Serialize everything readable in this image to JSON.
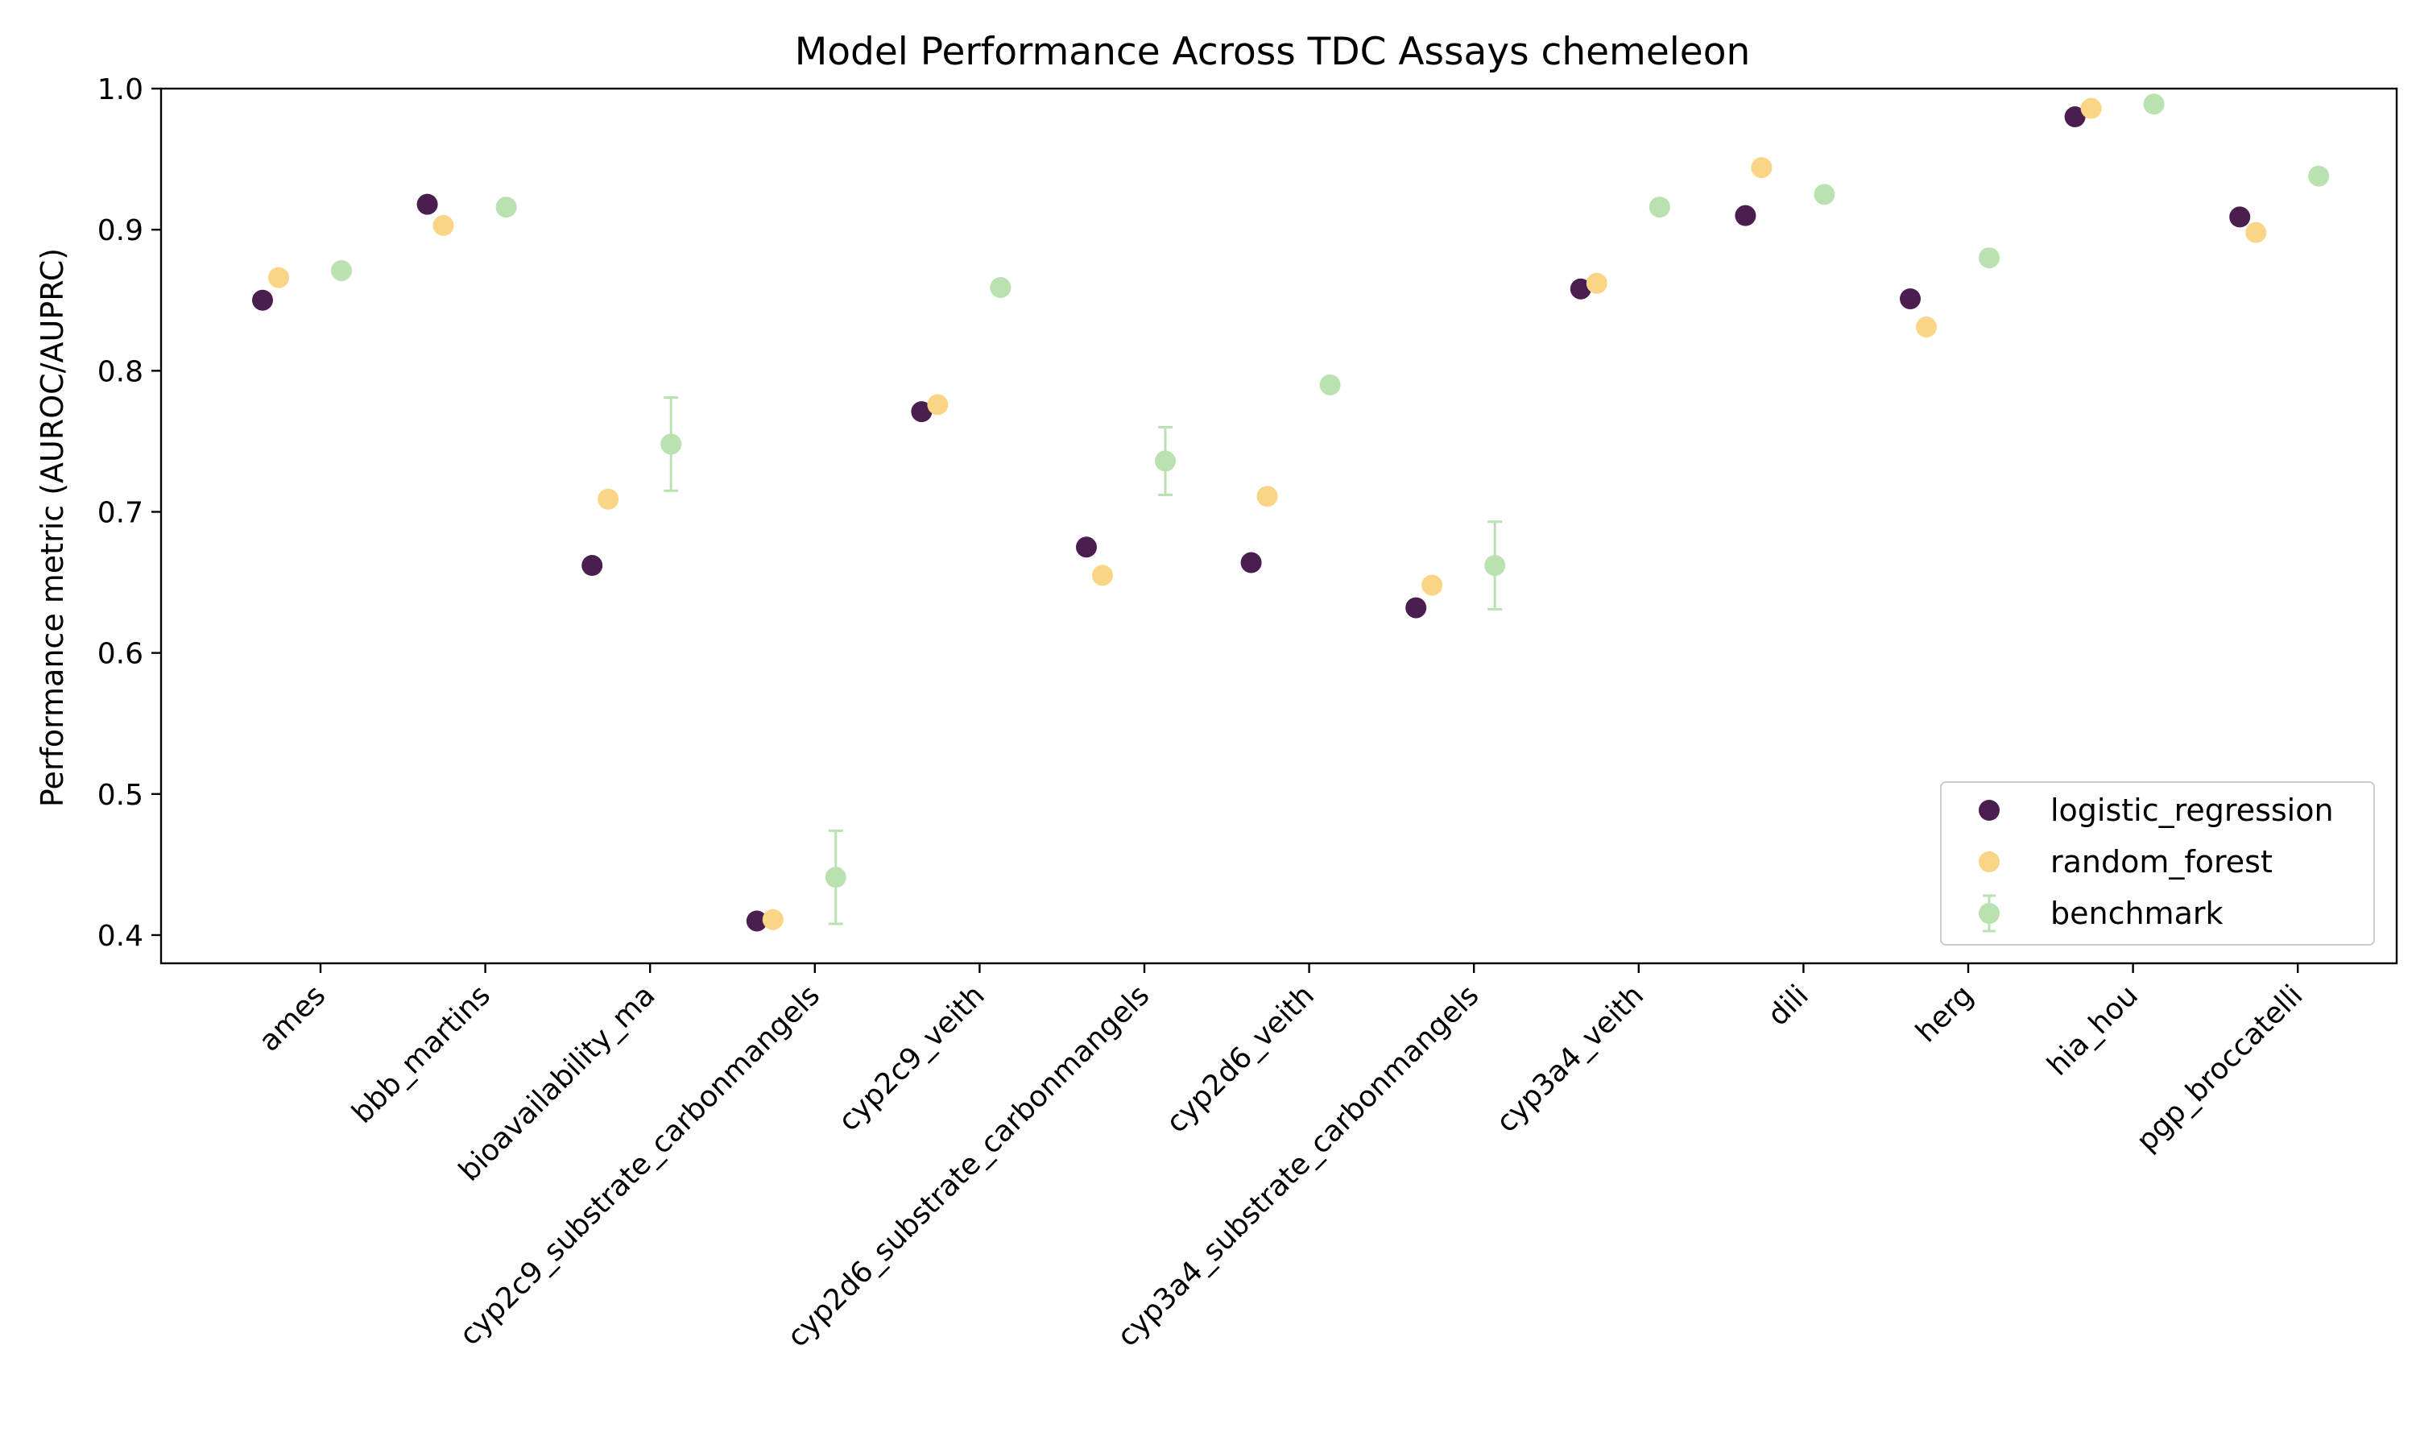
{
  "chart_data": {
    "type": "scatter",
    "title": "Model Performance Across TDC Assays chemeleon",
    "xlabel": "",
    "ylabel": "Performance metric (AUROC/AUPRC)",
    "ylim": [
      0.38,
      1.0
    ],
    "yticks": [
      "0.4",
      "0.5",
      "0.6",
      "0.7",
      "0.8",
      "0.9",
      "1.0"
    ],
    "grid": false,
    "legend_position": "lower right",
    "categories": [
      "ames",
      "bbb_martins",
      "bioavailability_ma",
      "cyp2c9_substrate_carbonmangels",
      "cyp2c9_veith",
      "cyp2d6_substrate_carbonmangels",
      "cyp2d6_veith",
      "cyp3a4_substrate_carbonmangels",
      "cyp3a4_veith",
      "dili",
      "herg",
      "hia_hou",
      "pgp_broccatelli"
    ],
    "series": [
      {
        "name": "logistic_regression",
        "color": "#4b1e50",
        "values": [
          0.85,
          0.918,
          0.662,
          0.41,
          0.771,
          0.675,
          0.664,
          0.632,
          0.858,
          0.91,
          0.851,
          0.98,
          0.909
        ]
      },
      {
        "name": "random_forest",
        "color": "#f9d585",
        "values": [
          0.866,
          0.903,
          0.709,
          0.411,
          0.776,
          0.655,
          0.711,
          0.648,
          0.862,
          0.944,
          0.831,
          0.986,
          0.898
        ]
      },
      {
        "name": "benchmark",
        "color": "#b9e2b0",
        "values": [
          0.871,
          0.916,
          0.748,
          0.441,
          0.859,
          0.736,
          0.79,
          0.662,
          0.916,
          0.925,
          0.88,
          0.989,
          0.938
        ],
        "errors": [
          0,
          0,
          0.033,
          0.033,
          0,
          0.024,
          0,
          0.031,
          0,
          0,
          0,
          0,
          0
        ]
      }
    ]
  }
}
